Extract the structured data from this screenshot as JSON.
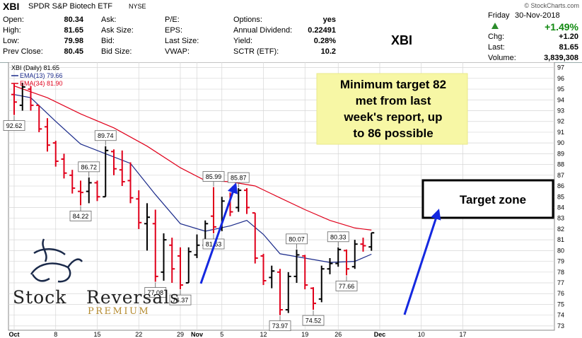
{
  "header": {
    "symbol": "XBI",
    "name": "SPDR S&P Biotech ETF",
    "exchange": "NYSE",
    "watermark": "© StockCharts.com",
    "fields_col1": [
      {
        "label": "Open:",
        "value": "80.34"
      },
      {
        "label": "High:",
        "value": "81.65"
      },
      {
        "label": "Low:",
        "value": "79.98"
      },
      {
        "label": "Prev Close:",
        "value": "80.45"
      }
    ],
    "fields_col2": [
      {
        "label": "Ask:",
        "value": ""
      },
      {
        "label": "Ask Size:",
        "value": ""
      },
      {
        "label": "Bid:",
        "value": ""
      },
      {
        "label": "Bid Size:",
        "value": ""
      }
    ],
    "fields_col3": [
      {
        "label": "P/E:",
        "value": ""
      },
      {
        "label": "EPS:",
        "value": ""
      },
      {
        "label": "Last Size:",
        "value": ""
      },
      {
        "label": "VWAP:",
        "value": ""
      }
    ],
    "fields_col4": [
      {
        "label": "Options:",
        "value": "yes"
      },
      {
        "label": "Annual Dividend:",
        "value": "0.22491"
      },
      {
        "label": "Yield:",
        "value": "0.28%"
      },
      {
        "label": "SCTR (ETF):",
        "value": "10.2"
      }
    ],
    "big_symbol": "XBI",
    "day": "Friday",
    "date": "30-Nov-2018",
    "change_pct": "+1.49%",
    "fields_col5": [
      {
        "label": "Chg:",
        "value": "+1.20"
      },
      {
        "label": "Last:",
        "value": "81.65"
      },
      {
        "label": "Volume:",
        "value": "3,839,308"
      }
    ]
  },
  "colors": {
    "up": "#000000",
    "down": "#e0001b",
    "ema13": "#1a2a8a",
    "ema34": "#e0001b",
    "arrow": "#1428e0",
    "note_bg": "#f7f7a5",
    "grid": "#d6d6d6"
  },
  "chart_data": {
    "type": "ohlc",
    "title": "XBI (Daily) 81.65",
    "legend": [
      {
        "name": "EMA(13) 79.66",
        "color": "#1a2a8a"
      },
      {
        "name": "EMA(34) 81.90",
        "color": "#e0001b"
      }
    ],
    "ylim": [
      72.6,
      97.5
    ],
    "y_ticks": [
      73,
      74,
      75,
      76,
      77,
      78,
      79,
      80,
      81,
      82,
      83,
      84,
      85,
      86,
      87,
      88,
      89,
      90,
      91,
      92,
      93,
      94,
      95,
      96,
      97
    ],
    "x_tick_labels": [
      {
        "label": "Oct",
        "i": 0
      },
      {
        "label": "8",
        "i": 5
      },
      {
        "label": "15",
        "i": 10
      },
      {
        "label": "22",
        "i": 15
      },
      {
        "label": "29",
        "i": 20
      },
      {
        "label": "Nov",
        "i": 22
      },
      {
        "label": "5",
        "i": 25
      },
      {
        "label": "12",
        "i": 30
      },
      {
        "label": "19",
        "i": 35
      },
      {
        "label": "26",
        "i": 39
      },
      {
        "label": "Dec",
        "i": 44
      },
      {
        "label": "10",
        "i": 49
      },
      {
        "label": "17",
        "i": 54
      }
    ],
    "ohlc": [
      {
        "date": "2018-10-01",
        "o": 94.5,
        "h": 95.5,
        "l": 92.6,
        "c": 93.8
      },
      {
        "date": "2018-10-02",
        "o": 93.5,
        "h": 95.6,
        "l": 93.0,
        "c": 95.2
      },
      {
        "date": "2018-10-03",
        "o": 95.0,
        "h": 95.3,
        "l": 93.0,
        "c": 93.5
      },
      {
        "date": "2018-10-04",
        "o": 93.5,
        "h": 93.5,
        "l": 91.0,
        "c": 91.3
      },
      {
        "date": "2018-10-05",
        "o": 91.5,
        "h": 92.3,
        "l": 89.2,
        "c": 89.8
      },
      {
        "date": "2018-10-08",
        "o": 90.0,
        "h": 90.2,
        "l": 87.8,
        "c": 88.3
      },
      {
        "date": "2018-10-09",
        "o": 88.5,
        "h": 89.0,
        "l": 86.7,
        "c": 87.2
      },
      {
        "date": "2018-10-10",
        "o": 87.0,
        "h": 87.5,
        "l": 85.3,
        "c": 85.8
      },
      {
        "date": "2018-10-11",
        "o": 85.5,
        "h": 86.5,
        "l": 84.2,
        "c": 85.4
      },
      {
        "date": "2018-10-12",
        "o": 85.5,
        "h": 86.8,
        "l": 84.4,
        "c": 86.3
      },
      {
        "date": "2018-10-15",
        "o": 86.3,
        "h": 86.5,
        "l": 84.6,
        "c": 85.0
      },
      {
        "date": "2018-10-16",
        "o": 85.0,
        "h": 89.7,
        "l": 85.0,
        "c": 89.3
      },
      {
        "date": "2018-10-17",
        "o": 89.2,
        "h": 89.4,
        "l": 87.0,
        "c": 87.6
      },
      {
        "date": "2018-10-18",
        "o": 87.5,
        "h": 89.3,
        "l": 86.0,
        "c": 86.4
      },
      {
        "date": "2018-10-19",
        "o": 86.5,
        "h": 88.2,
        "l": 84.4,
        "c": 84.9
      },
      {
        "date": "2018-10-22",
        "o": 84.8,
        "h": 85.6,
        "l": 82.0,
        "c": 82.6
      },
      {
        "date": "2018-10-23",
        "o": 82.5,
        "h": 84.4,
        "l": 80.0,
        "c": 83.1
      },
      {
        "date": "2018-10-24",
        "o": 82.5,
        "h": 83.8,
        "l": 77.1,
        "c": 77.6
      },
      {
        "date": "2018-10-25",
        "o": 78.0,
        "h": 81.6,
        "l": 77.2,
        "c": 81.0
      },
      {
        "date": "2018-10-26",
        "o": 80.5,
        "h": 81.2,
        "l": 77.0,
        "c": 78.3
      },
      {
        "date": "2018-10-29",
        "o": 79.5,
        "h": 80.3,
        "l": 76.4,
        "c": 76.8
      },
      {
        "date": "2018-10-30",
        "o": 77.0,
        "h": 80.3,
        "l": 77.0,
        "c": 79.9
      },
      {
        "date": "2018-10-31",
        "o": 79.6,
        "h": 81.5,
        "l": 79.3,
        "c": 80.5
      },
      {
        "date": "2018-11-01",
        "o": 80.5,
        "h": 82.8,
        "l": 80.4,
        "c": 82.5
      },
      {
        "date": "2018-11-02",
        "o": 83.2,
        "h": 85.9,
        "l": 81.6,
        "c": 82.2
      },
      {
        "date": "2018-11-05",
        "o": 82.0,
        "h": 85.0,
        "l": 81.8,
        "c": 84.6
      },
      {
        "date": "2018-11-06",
        "o": 84.3,
        "h": 85.4,
        "l": 83.2,
        "c": 83.6
      },
      {
        "date": "2018-11-07",
        "o": 84.0,
        "h": 85.8,
        "l": 83.6,
        "c": 85.6
      },
      {
        "date": "2018-11-08",
        "o": 85.6,
        "h": 85.8,
        "l": 83.4,
        "c": 84.0
      },
      {
        "date": "2018-11-09",
        "o": 83.5,
        "h": 83.5,
        "l": 78.8,
        "c": 79.3
      },
      {
        "date": "2018-11-12",
        "o": 79.5,
        "h": 79.7,
        "l": 76.8,
        "c": 77.2
      },
      {
        "date": "2018-11-13",
        "o": 77.5,
        "h": 78.6,
        "l": 76.5,
        "c": 78.1
      },
      {
        "date": "2018-11-14",
        "o": 78.0,
        "h": 78.3,
        "l": 74.0,
        "c": 74.5
      },
      {
        "date": "2018-11-15",
        "o": 74.5,
        "h": 78.0,
        "l": 74.2,
        "c": 77.6
      },
      {
        "date": "2018-11-16",
        "o": 77.6,
        "h": 80.1,
        "l": 77.0,
        "c": 79.6
      },
      {
        "date": "2018-11-19",
        "o": 79.5,
        "h": 79.6,
        "l": 76.4,
        "c": 76.8
      },
      {
        "date": "2018-11-20",
        "o": 76.5,
        "h": 76.6,
        "l": 74.5,
        "c": 75.1
      },
      {
        "date": "2018-11-21",
        "o": 75.5,
        "h": 78.6,
        "l": 75.2,
        "c": 78.3
      },
      {
        "date": "2018-11-23",
        "o": 78.3,
        "h": 79.3,
        "l": 77.8,
        "c": 78.8
      },
      {
        "date": "2018-11-26",
        "o": 78.8,
        "h": 80.3,
        "l": 78.5,
        "c": 80.1
      },
      {
        "date": "2018-11-27",
        "o": 80.0,
        "h": 80.1,
        "l": 77.7,
        "c": 78.3
      },
      {
        "date": "2018-11-28",
        "o": 78.5,
        "h": 81.0,
        "l": 78.3,
        "c": 80.6
      },
      {
        "date": "2018-11-29",
        "o": 80.6,
        "h": 81.2,
        "l": 79.9,
        "c": 80.45
      },
      {
        "date": "2018-11-30",
        "o": 80.34,
        "h": 81.65,
        "l": 79.98,
        "c": 81.65
      }
    ],
    "ema13": [
      [
        0,
        94.5
      ],
      [
        2,
        94.2
      ],
      [
        5,
        92.0
      ],
      [
        8,
        89.9
      ],
      [
        11,
        89.0
      ],
      [
        14,
        88.1
      ],
      [
        17,
        85.2
      ],
      [
        20,
        82.5
      ],
      [
        23,
        81.8
      ],
      [
        26,
        82.3
      ],
      [
        28,
        82.8
      ],
      [
        30,
        81.5
      ],
      [
        32,
        79.7
      ],
      [
        35,
        79.3
      ],
      [
        38,
        78.9
      ],
      [
        41,
        79.0
      ],
      [
        43,
        79.66
      ]
    ],
    "ema34": [
      [
        0,
        95.3
      ],
      [
        4,
        94.2
      ],
      [
        8,
        92.7
      ],
      [
        12,
        91.4
      ],
      [
        16,
        89.7
      ],
      [
        20,
        87.7
      ],
      [
        23,
        86.5
      ],
      [
        26,
        86.4
      ],
      [
        29,
        86.0
      ],
      [
        32,
        84.9
      ],
      [
        35,
        83.8
      ],
      [
        38,
        82.8
      ],
      [
        41,
        82.1
      ],
      [
        43,
        81.9
      ]
    ],
    "price_labels": [
      {
        "text": "92.62",
        "i": 0,
        "v": 92.6,
        "pos": "below"
      },
      {
        "text": "89.74",
        "i": 11,
        "v": 89.7,
        "pos": "above"
      },
      {
        "text": "86.72",
        "i": 9,
        "v": 86.8,
        "pos": "above"
      },
      {
        "text": "84.22",
        "i": 8,
        "v": 84.2,
        "pos": "below"
      },
      {
        "text": "77.08",
        "i": 17,
        "v": 77.1,
        "pos": "below"
      },
      {
        "text": "76.37",
        "i": 20,
        "v": 76.4,
        "pos": "below"
      },
      {
        "text": "85.99",
        "i": 24,
        "v": 85.9,
        "pos": "above"
      },
      {
        "text": "81.63",
        "i": 24,
        "v": 81.6,
        "pos": "below"
      },
      {
        "text": "85.87",
        "i": 27,
        "v": 85.8,
        "pos": "above"
      },
      {
        "text": "73.97",
        "i": 32,
        "v": 74.0,
        "pos": "below"
      },
      {
        "text": "80.07",
        "i": 34,
        "v": 80.1,
        "pos": "above"
      },
      {
        "text": "74.52",
        "i": 36,
        "v": 74.5,
        "pos": "below"
      },
      {
        "text": "80.33",
        "i": 39,
        "v": 80.3,
        "pos": "above"
      },
      {
        "text": "77.66",
        "i": 40,
        "v": 77.7,
        "pos": "below"
      }
    ],
    "annotations": {
      "note": [
        "Minimum target 82",
        "met from last",
        "week's report, up",
        "to 86 possible"
      ],
      "target_label": "Target zone"
    }
  },
  "logo": {
    "line1a": "Stock",
    "line1b": "Reversals",
    "line2": "PREMIUM"
  }
}
